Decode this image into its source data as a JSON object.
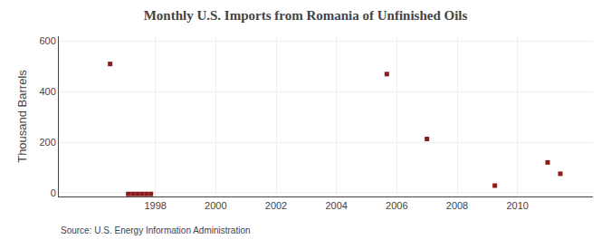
{
  "chart_data": {
    "type": "scatter",
    "title": "Monthly U.S. Imports from Romania of Unfinished Oils",
    "ylabel": "Thousand Barrels",
    "annotations": [
      "Source: U.S. Energy Information Administration"
    ],
    "x": [
      1996.5,
      1997.1,
      1997.25,
      1997.4,
      1997.55,
      1997.7,
      1997.85,
      2005.67,
      2007.0,
      2009.25,
      2011.0,
      2011.42
    ],
    "values": [
      510,
      -5,
      -5,
      -5,
      -5,
      -5,
      -5,
      470,
      213,
      28,
      120,
      75
    ],
    "color": "#8b1a1a",
    "marker": "square",
    "xlim": [
      1994.8,
      2012.5
    ],
    "ylim": [
      -15,
      620
    ],
    "xticks": [
      1998,
      2000,
      2002,
      2004,
      2006,
      2008,
      2010
    ],
    "yticks": [
      0,
      200,
      400,
      600
    ],
    "grid": true
  }
}
